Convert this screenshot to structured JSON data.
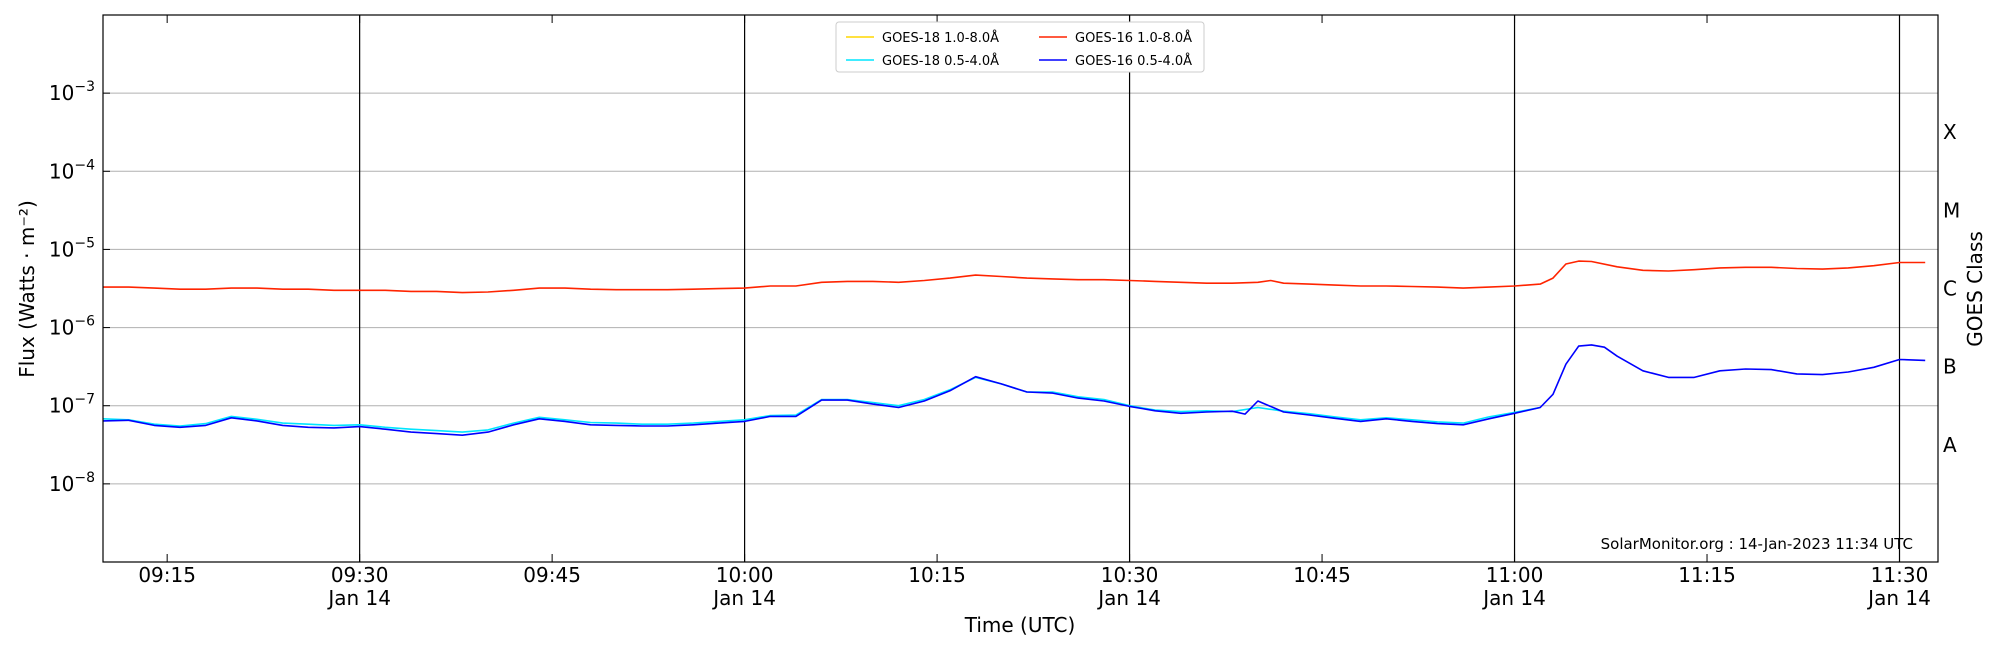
{
  "chart_data": {
    "type": "line",
    "xlabel": "Time (UTC)",
    "ylabel": "Flux (Watts · m⁻²)",
    "ylabel_right": "GOES Class",
    "y_scale": "log",
    "ylim": [
      1e-09,
      0.01
    ],
    "xlim": [
      "09:10",
      "11:33"
    ],
    "grid": "horizontal at each decade",
    "legend_position": "top-center",
    "watermark": "SolarMonitor.org : 14-Jan-2023 11:34 UTC",
    "y_ticks": [
      {
        "value": 1e-08,
        "base": "10",
        "exp": "−8"
      },
      {
        "value": 1e-07,
        "base": "10",
        "exp": "−7"
      },
      {
        "value": 1e-06,
        "base": "10",
        "exp": "−6"
      },
      {
        "value": 1e-05,
        "base": "10",
        "exp": "−5"
      },
      {
        "value": 0.0001,
        "base": "10",
        "exp": "−4"
      },
      {
        "value": 0.001,
        "base": "10",
        "exp": "−3"
      }
    ],
    "x_ticks": [
      {
        "time": "09:15",
        "label": "09:15",
        "sub": ""
      },
      {
        "time": "09:30",
        "label": "09:30",
        "sub": "Jan 14"
      },
      {
        "time": "09:45",
        "label": "09:45",
        "sub": ""
      },
      {
        "time": "10:00",
        "label": "10:00",
        "sub": "Jan 14"
      },
      {
        "time": "10:15",
        "label": "10:15",
        "sub": ""
      },
      {
        "time": "10:30",
        "label": "10:30",
        "sub": "Jan 14"
      },
      {
        "time": "10:45",
        "label": "10:45",
        "sub": ""
      },
      {
        "time": "11:00",
        "label": "11:00",
        "sub": "Jan 14"
      },
      {
        "time": "11:15",
        "label": "11:15",
        "sub": ""
      },
      {
        "time": "11:30",
        "label": "11:30",
        "sub": "Jan 14"
      }
    ],
    "vertical_lines": [
      "09:30",
      "10:00",
      "10:30",
      "11:00",
      "11:30"
    ],
    "goes_classes": [
      {
        "label": "A",
        "value": 3.16e-08
      },
      {
        "label": "B",
        "value": 3.16e-07
      },
      {
        "label": "C",
        "value": 3.16e-06
      },
      {
        "label": "M",
        "value": 3.16e-05
      },
      {
        "label": "X",
        "value": 0.000316
      }
    ],
    "series": [
      {
        "name": "GOES-18 1.0-8.0Å",
        "color": "#ffd700",
        "points": []
      },
      {
        "name": "GOES-18 0.5-4.0Å",
        "color": "#00e5ff",
        "points": [
          [
            "09:10",
            6.8e-08
          ],
          [
            "09:12",
            6.6e-08
          ],
          [
            "09:14",
            5.8e-08
          ],
          [
            "09:16",
            5.5e-08
          ],
          [
            "09:18",
            5.9e-08
          ],
          [
            "09:20",
            7.3e-08
          ],
          [
            "09:22",
            6.7e-08
          ],
          [
            "09:24",
            6e-08
          ],
          [
            "09:26",
            5.8e-08
          ],
          [
            "09:28",
            5.6e-08
          ],
          [
            "09:30",
            5.7e-08
          ],
          [
            "09:32",
            5.3e-08
          ],
          [
            "09:34",
            5e-08
          ],
          [
            "09:36",
            4.8e-08
          ],
          [
            "09:38",
            4.6e-08
          ],
          [
            "09:40",
            4.9e-08
          ],
          [
            "09:42",
            6e-08
          ],
          [
            "09:44",
            7.1e-08
          ],
          [
            "09:46",
            6.6e-08
          ],
          [
            "09:48",
            6.1e-08
          ],
          [
            "09:50",
            6e-08
          ],
          [
            "09:52",
            5.8e-08
          ],
          [
            "09:54",
            5.8e-08
          ],
          [
            "09:56",
            6e-08
          ],
          [
            "09:58",
            6.3e-08
          ],
          [
            "10:00",
            6.6e-08
          ],
          [
            "10:02",
            7.5e-08
          ],
          [
            "10:04",
            7.6e-08
          ],
          [
            "10:06",
            1.2e-07
          ],
          [
            "10:08",
            1.2e-07
          ],
          [
            "10:10",
            1.1e-07
          ],
          [
            "10:12",
            1e-07
          ],
          [
            "10:14",
            1.2e-07
          ],
          [
            "10:16",
            1.6e-07
          ],
          [
            "10:18",
            2.3e-07
          ],
          [
            "10:20",
            1.9e-07
          ],
          [
            "10:22",
            1.5e-07
          ],
          [
            "10:24",
            1.5e-07
          ],
          [
            "10:26",
            1.3e-07
          ],
          [
            "10:28",
            1.2e-07
          ],
          [
            "10:30",
            1e-07
          ],
          [
            "10:32",
            8.8e-08
          ],
          [
            "10:34",
            8.4e-08
          ],
          [
            "10:36",
            8.6e-08
          ],
          [
            "10:38",
            8.4e-08
          ],
          [
            "10:40",
            9.5e-08
          ],
          [
            "10:42",
            8.5e-08
          ],
          [
            "10:44",
            7.9e-08
          ],
          [
            "10:46",
            7.2e-08
          ],
          [
            "10:48",
            6.6e-08
          ],
          [
            "10:50",
            7e-08
          ],
          [
            "10:52",
            6.6e-08
          ],
          [
            "10:54",
            6.2e-08
          ],
          [
            "10:56",
            6e-08
          ],
          [
            "10:58",
            7.2e-08
          ],
          [
            "11:00",
            8.2e-08
          ],
          [
            "11:02",
            9.5e-08
          ]
        ]
      },
      {
        "name": "GOES-16 1.0-8.0Å",
        "color": "#ff2400",
        "points": [
          [
            "09:10",
            3.3e-06
          ],
          [
            "09:12",
            3.3e-06
          ],
          [
            "09:14",
            3.2e-06
          ],
          [
            "09:16",
            3.1e-06
          ],
          [
            "09:18",
            3.1e-06
          ],
          [
            "09:20",
            3.2e-06
          ],
          [
            "09:22",
            3.2e-06
          ],
          [
            "09:24",
            3.1e-06
          ],
          [
            "09:26",
            3.1e-06
          ],
          [
            "09:28",
            3e-06
          ],
          [
            "09:30",
            3e-06
          ],
          [
            "09:32",
            3e-06
          ],
          [
            "09:34",
            2.9e-06
          ],
          [
            "09:36",
            2.9e-06
          ],
          [
            "09:38",
            2.8e-06
          ],
          [
            "09:40",
            2.85e-06
          ],
          [
            "09:42",
            3e-06
          ],
          [
            "09:44",
            3.2e-06
          ],
          [
            "09:46",
            3.2e-06
          ],
          [
            "09:48",
            3.1e-06
          ],
          [
            "09:50",
            3.05e-06
          ],
          [
            "09:52",
            3.05e-06
          ],
          [
            "09:54",
            3.05e-06
          ],
          [
            "09:56",
            3.1e-06
          ],
          [
            "09:58",
            3.15e-06
          ],
          [
            "10:00",
            3.2e-06
          ],
          [
            "10:02",
            3.4e-06
          ],
          [
            "10:04",
            3.4e-06
          ],
          [
            "10:06",
            3.8e-06
          ],
          [
            "10:08",
            3.9e-06
          ],
          [
            "10:10",
            3.9e-06
          ],
          [
            "10:12",
            3.8e-06
          ],
          [
            "10:14",
            4e-06
          ],
          [
            "10:16",
            4.3e-06
          ],
          [
            "10:18",
            4.7e-06
          ],
          [
            "10:20",
            4.5e-06
          ],
          [
            "10:22",
            4.3e-06
          ],
          [
            "10:24",
            4.2e-06
          ],
          [
            "10:26",
            4.1e-06
          ],
          [
            "10:28",
            4.1e-06
          ],
          [
            "10:30",
            4e-06
          ],
          [
            "10:32",
            3.9e-06
          ],
          [
            "10:34",
            3.8e-06
          ],
          [
            "10:36",
            3.7e-06
          ],
          [
            "10:38",
            3.7e-06
          ],
          [
            "10:40",
            3.8e-06
          ],
          [
            "10:41",
            4e-06
          ],
          [
            "10:42",
            3.7e-06
          ],
          [
            "10:44",
            3.6e-06
          ],
          [
            "10:46",
            3.5e-06
          ],
          [
            "10:48",
            3.4e-06
          ],
          [
            "10:50",
            3.4e-06
          ],
          [
            "10:52",
            3.35e-06
          ],
          [
            "10:54",
            3.3e-06
          ],
          [
            "10:56",
            3.2e-06
          ],
          [
            "10:58",
            3.3e-06
          ],
          [
            "11:00",
            3.4e-06
          ],
          [
            "11:02",
            3.6e-06
          ],
          [
            "11:03",
            4.3e-06
          ],
          [
            "11:04",
            6.5e-06
          ],
          [
            "11:05",
            7.1e-06
          ],
          [
            "11:06",
            7e-06
          ],
          [
            "11:08",
            6e-06
          ],
          [
            "11:10",
            5.4e-06
          ],
          [
            "11:12",
            5.3e-06
          ],
          [
            "11:14",
            5.5e-06
          ],
          [
            "11:16",
            5.8e-06
          ],
          [
            "11:18",
            5.9e-06
          ],
          [
            "11:20",
            5.9e-06
          ],
          [
            "11:22",
            5.7e-06
          ],
          [
            "11:24",
            5.6e-06
          ],
          [
            "11:26",
            5.8e-06
          ],
          [
            "11:28",
            6.2e-06
          ],
          [
            "11:30",
            6.8e-06
          ],
          [
            "11:32",
            6.8e-06
          ]
        ]
      },
      {
        "name": "GOES-16 0.5-4.0Å",
        "color": "#0000ff",
        "points": [
          [
            "09:10",
            6.4e-08
          ],
          [
            "09:12",
            6.5e-08
          ],
          [
            "09:14",
            5.6e-08
          ],
          [
            "09:16",
            5.3e-08
          ],
          [
            "09:18",
            5.6e-08
          ],
          [
            "09:20",
            7e-08
          ],
          [
            "09:22",
            6.4e-08
          ],
          [
            "09:24",
            5.6e-08
          ],
          [
            "09:26",
            5.3e-08
          ],
          [
            "09:28",
            5.2e-08
          ],
          [
            "09:30",
            5.4e-08
          ],
          [
            "09:32",
            5e-08
          ],
          [
            "09:34",
            4.6e-08
          ],
          [
            "09:36",
            4.4e-08
          ],
          [
            "09:38",
            4.2e-08
          ],
          [
            "09:40",
            4.6e-08
          ],
          [
            "09:42",
            5.7e-08
          ],
          [
            "09:44",
            6.8e-08
          ],
          [
            "09:46",
            6.3e-08
          ],
          [
            "09:48",
            5.7e-08
          ],
          [
            "09:50",
            5.6e-08
          ],
          [
            "09:52",
            5.5e-08
          ],
          [
            "09:54",
            5.5e-08
          ],
          [
            "09:56",
            5.7e-08
          ],
          [
            "09:58",
            6e-08
          ],
          [
            "10:00",
            6.3e-08
          ],
          [
            "10:02",
            7.3e-08
          ],
          [
            "10:04",
            7.3e-08
          ],
          [
            "10:06",
            1.18e-07
          ],
          [
            "10:08",
            1.18e-07
          ],
          [
            "10:10",
            1.05e-07
          ],
          [
            "10:12",
            9.5e-08
          ],
          [
            "10:14",
            1.15e-07
          ],
          [
            "10:16",
            1.55e-07
          ],
          [
            "10:18",
            2.35e-07
          ],
          [
            "10:20",
            1.9e-07
          ],
          [
            "10:22",
            1.5e-07
          ],
          [
            "10:24",
            1.45e-07
          ],
          [
            "10:26",
            1.25e-07
          ],
          [
            "10:28",
            1.15e-07
          ],
          [
            "10:30",
            9.8e-08
          ],
          [
            "10:32",
            8.6e-08
          ],
          [
            "10:34",
            8e-08
          ],
          [
            "10:36",
            8.3e-08
          ],
          [
            "10:38",
            8.5e-08
          ],
          [
            "10:39",
            7.8e-08
          ],
          [
            "10:40",
            1.15e-07
          ],
          [
            "10:42",
            8.3e-08
          ],
          [
            "10:44",
            7.6e-08
          ],
          [
            "10:46",
            6.9e-08
          ],
          [
            "10:48",
            6.3e-08
          ],
          [
            "10:50",
            6.8e-08
          ],
          [
            "10:52",
            6.3e-08
          ],
          [
            "10:54",
            5.9e-08
          ],
          [
            "10:56",
            5.7e-08
          ],
          [
            "10:58",
            6.8e-08
          ],
          [
            "11:00",
            8e-08
          ],
          [
            "11:02",
            9.5e-08
          ],
          [
            "11:03",
            1.4e-07
          ],
          [
            "11:04",
            3.4e-07
          ],
          [
            "11:05",
            5.8e-07
          ],
          [
            "11:06",
            6e-07
          ],
          [
            "11:07",
            5.6e-07
          ],
          [
            "11:08",
            4.3e-07
          ],
          [
            "11:10",
            2.8e-07
          ],
          [
            "11:12",
            2.3e-07
          ],
          [
            "11:14",
            2.3e-07
          ],
          [
            "11:16",
            2.8e-07
          ],
          [
            "11:18",
            2.95e-07
          ],
          [
            "11:20",
            2.9e-07
          ],
          [
            "11:22",
            2.55e-07
          ],
          [
            "11:24",
            2.5e-07
          ],
          [
            "11:26",
            2.7e-07
          ],
          [
            "11:28",
            3.1e-07
          ],
          [
            "11:30",
            3.9e-07
          ],
          [
            "11:32",
            3.8e-07
          ]
        ]
      }
    ]
  }
}
